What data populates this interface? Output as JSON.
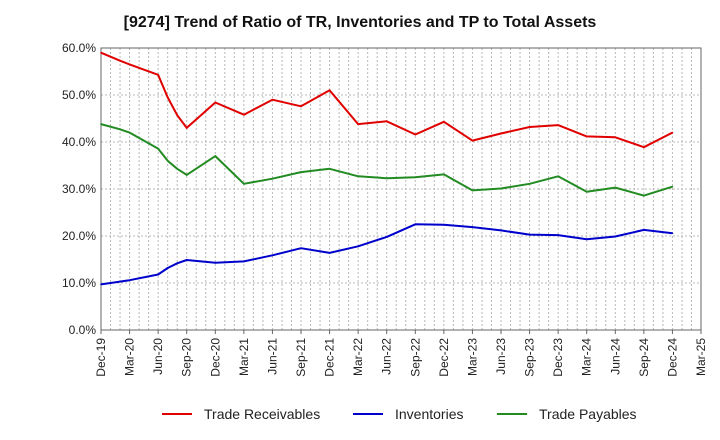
{
  "chart_data": {
    "type": "line",
    "title": "[9274]  Trend of Ratio of TR, Inventories and TP to Total Assets",
    "xlabel": "",
    "ylabel": "",
    "ylim": [
      0,
      60
    ],
    "yticks": [
      0,
      10,
      20,
      30,
      40,
      50,
      60
    ],
    "ytick_labels": [
      "0.0%",
      "10.0%",
      "20.0%",
      "30.0%",
      "40.0%",
      "50.0%",
      "60.0%"
    ],
    "grid": true,
    "legend_position": "bottom",
    "x_labels": [
      "Dec-19",
      "Mar-20",
      "Jun-20",
      "Sep-20",
      "Dec-20",
      "Mar-21",
      "Jun-21",
      "Sep-21",
      "Dec-21",
      "Mar-22",
      "Jun-22",
      "Sep-22",
      "Dec-22",
      "Mar-23",
      "Jun-23",
      "Sep-23",
      "Dec-23",
      "Mar-24",
      "Jun-24",
      "Sep-24",
      "Dec-24",
      "Mar-25"
    ],
    "x": [
      "2019-12",
      "2020-02",
      "2020-03",
      "2020-06",
      "2020-07",
      "2020-08",
      "2020-09",
      "2020-12",
      "2021-03",
      "2021-06",
      "2021-09",
      "2021-12",
      "2022-03",
      "2022-06",
      "2022-09",
      "2022-12",
      "2023-03",
      "2023-06",
      "2023-09",
      "2023-12",
      "2024-03",
      "2024-06",
      "2024-09",
      "2024-12"
    ],
    "series": [
      {
        "name": "Trade Receivables",
        "color": "#e00000",
        "values": [
          59.0,
          57.3,
          56.5,
          54.3,
          49.5,
          45.7,
          43.0,
          48.4,
          45.8,
          49.0,
          47.6,
          51.0,
          43.8,
          44.4,
          41.6,
          44.3,
          40.3,
          41.8,
          43.2,
          43.6,
          41.2,
          41.0,
          38.9,
          42.0
        ]
      },
      {
        "name": "Inventories",
        "color": "#0000cc",
        "values": [
          9.7,
          10.3,
          10.6,
          11.8,
          13.2,
          14.2,
          14.9,
          14.3,
          14.6,
          15.9,
          17.4,
          16.4,
          17.8,
          19.8,
          22.5,
          22.4,
          21.9,
          21.2,
          20.3,
          20.2,
          19.3,
          19.9,
          21.3,
          20.6
        ]
      },
      {
        "name": "Trade Payables",
        "color": "#228b22",
        "values": [
          43.8,
          42.7,
          42.0,
          38.6,
          36.0,
          34.3,
          33.0,
          37.0,
          31.1,
          32.2,
          33.6,
          34.3,
          32.7,
          32.3,
          32.5,
          33.1,
          29.7,
          30.1,
          31.1,
          32.7,
          29.4,
          30.3,
          28.6,
          30.5
        ]
      }
    ]
  }
}
